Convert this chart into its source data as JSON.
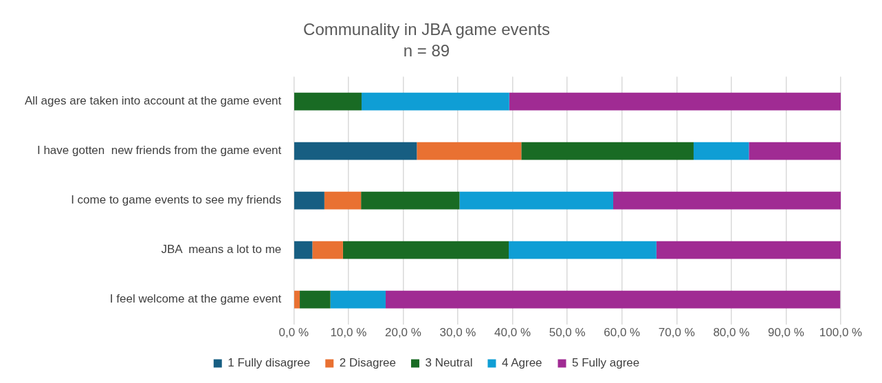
{
  "chart_data": {
    "type": "bar",
    "orientation": "horizontal",
    "stacked": true,
    "title": "Communality in JBA game events",
    "subtitle": "n = 89",
    "categories": [
      "All ages are taken into account at the game event",
      "I have gotten  new friends from the game event",
      "I come to game events to see my friends",
      "JBA  means a lot to me",
      "I feel welcome at the game event"
    ],
    "series": [
      {
        "name": "1 Fully disagree",
        "color": "#175e82",
        "values": [
          0,
          22.5,
          5.6,
          3.4,
          0
        ]
      },
      {
        "name": "2 Disagree",
        "color": "#e97132",
        "values": [
          0,
          19.1,
          6.7,
          5.6,
          1.1
        ]
      },
      {
        "name": "3 Neutral",
        "color": "#196b24",
        "values": [
          12.4,
          31.5,
          18.0,
          30.3,
          5.6
        ]
      },
      {
        "name": "4 Agree",
        "color": "#0f9ed5",
        "values": [
          27.0,
          10.1,
          28.1,
          27.0,
          10.1
        ]
      },
      {
        "name": "5 Fully agree",
        "color": "#a02b93",
        "values": [
          60.7,
          16.9,
          41.6,
          33.7,
          83.1
        ]
      }
    ],
    "xlim": [
      0,
      100
    ],
    "xticks": [
      {
        "value": 0,
        "label": "0,0 %"
      },
      {
        "value": 10,
        "label": "10,0 %"
      },
      {
        "value": 20,
        "label": "20,0 %"
      },
      {
        "value": 30,
        "label": "30,0 %"
      },
      {
        "value": 40,
        "label": "40,0 %"
      },
      {
        "value": 50,
        "label": "50,0 %"
      },
      {
        "value": 60,
        "label": "60,0 %"
      },
      {
        "value": 70,
        "label": "70,0 %"
      },
      {
        "value": 80,
        "label": "80,0 %"
      },
      {
        "value": 90,
        "label": "90,0 %"
      },
      {
        "value": 100,
        "label": "100,0 %"
      }
    ],
    "grid": "x",
    "legend": "bottom"
  }
}
